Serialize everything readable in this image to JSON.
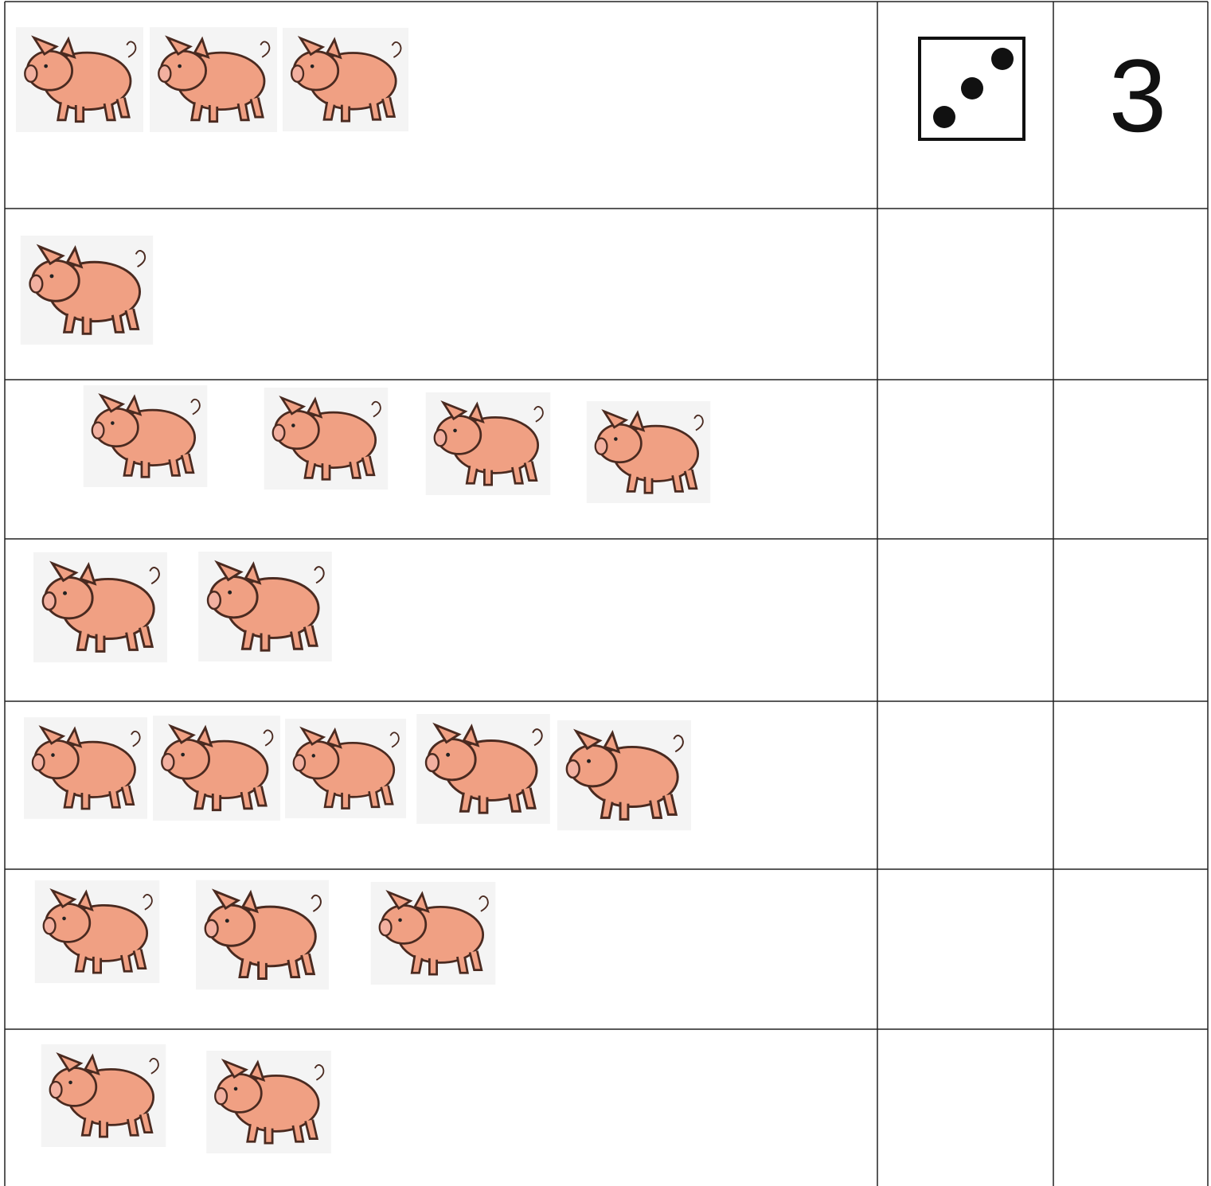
{
  "worksheet": {
    "example_answer": "3"
  }
}
